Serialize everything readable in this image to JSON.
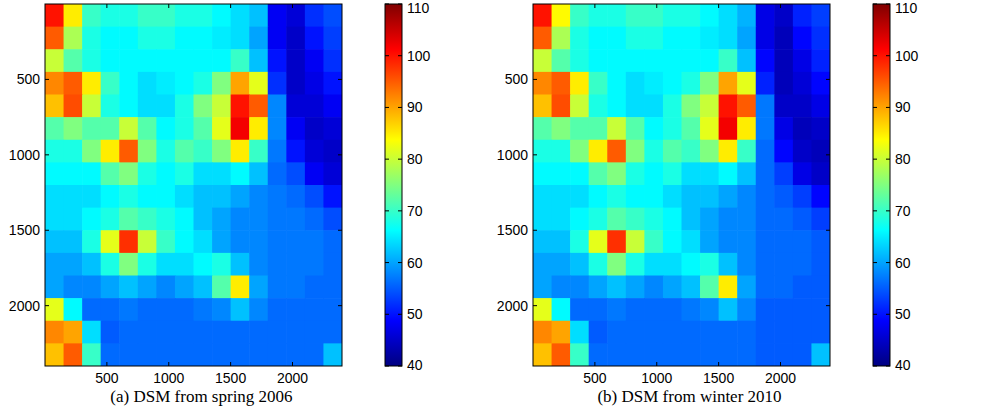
{
  "chart_data": [
    {
      "type": "heatmap",
      "title": "(a) DSM from spring 2006",
      "color": "jet",
      "x": [
        75,
        225,
        375,
        525,
        675,
        825,
        975,
        1125,
        1275,
        1425,
        1575,
        1725,
        1875,
        2025,
        2175,
        2325
      ],
      "y": [
        75,
        225,
        375,
        525,
        675,
        825,
        975,
        1125,
        1275,
        1425,
        1575,
        1725,
        1875,
        2025,
        2175,
        2325
      ],
      "xlim": [
        0,
        2400
      ],
      "ylim": [
        2400,
        0
      ],
      "xticks": [
        500,
        1000,
        1500,
        2000
      ],
      "yticks": [
        500,
        1000,
        1500,
        2000
      ],
      "colorbar_range": [
        40,
        110
      ],
      "colorbar_ticks": [
        40,
        50,
        60,
        70,
        80,
        90,
        100,
        110
      ],
      "cells": [
        [
          100,
          85,
          70,
          68,
          68,
          70,
          70,
          68,
          68,
          66,
          64,
          62,
          48,
          46,
          52,
          54
        ],
        [
          95,
          78,
          68,
          66,
          66,
          68,
          68,
          66,
          66,
          65,
          64,
          60,
          48,
          45,
          50,
          53
        ],
        [
          80,
          72,
          68,
          66,
          66,
          66,
          66,
          66,
          66,
          66,
          70,
          62,
          50,
          45,
          48,
          52
        ],
        [
          92,
          95,
          85,
          70,
          66,
          64,
          65,
          66,
          68,
          75,
          90,
          82,
          52,
          45,
          47,
          50
        ],
        [
          88,
          96,
          80,
          68,
          66,
          64,
          64,
          68,
          75,
          80,
          100,
          95,
          58,
          46,
          46,
          48
        ],
        [
          72,
          75,
          72,
          72,
          80,
          72,
          66,
          68,
          72,
          82,
          102,
          85,
          58,
          48,
          45,
          46
        ],
        [
          68,
          68,
          75,
          85,
          95,
          75,
          68,
          72,
          70,
          75,
          85,
          70,
          57,
          50,
          46,
          45
        ],
        [
          66,
          66,
          66,
          72,
          75,
          68,
          66,
          68,
          64,
          64,
          66,
          62,
          56,
          54,
          48,
          46
        ],
        [
          64,
          64,
          64,
          66,
          68,
          66,
          66,
          64,
          62,
          62,
          60,
          58,
          57,
          56,
          54,
          50
        ],
        [
          64,
          64,
          66,
          68,
          72,
          70,
          68,
          66,
          62,
          60,
          58,
          58,
          57,
          57,
          56,
          54
        ],
        [
          62,
          62,
          68,
          82,
          98,
          80,
          70,
          66,
          64,
          60,
          58,
          58,
          57,
          57,
          57,
          56
        ],
        [
          60,
          60,
          62,
          68,
          75,
          68,
          64,
          64,
          66,
          68,
          62,
          58,
          57,
          57,
          57,
          56
        ],
        [
          60,
          58,
          58,
          60,
          62,
          60,
          58,
          60,
          62,
          72,
          85,
          60,
          57,
          57,
          56,
          56
        ],
        [
          82,
          66,
          56,
          56,
          57,
          56,
          56,
          56,
          57,
          58,
          62,
          58,
          56,
          56,
          56,
          56
        ],
        [
          92,
          90,
          64,
          55,
          56,
          56,
          56,
          56,
          56,
          56,
          56,
          56,
          56,
          56,
          56,
          56
        ],
        [
          88,
          95,
          70,
          56,
          56,
          56,
          56,
          56,
          56,
          56,
          56,
          56,
          56,
          56,
          56,
          62
        ]
      ]
    },
    {
      "type": "heatmap",
      "title": "(b) DSM from winter 2010",
      "color": "jet",
      "x": [
        75,
        225,
        375,
        525,
        675,
        825,
        975,
        1125,
        1275,
        1425,
        1575,
        1725,
        1875,
        2025,
        2175,
        2325
      ],
      "y": [
        75,
        225,
        375,
        525,
        675,
        825,
        975,
        1125,
        1275,
        1425,
        1575,
        1725,
        1875,
        2025,
        2175,
        2325
      ],
      "xlim": [
        0,
        2400
      ],
      "ylim": [
        2400,
        0
      ],
      "xticks": [
        500,
        1000,
        1500,
        2000
      ],
      "yticks": [
        500,
        1000,
        1500,
        2000
      ],
      "colorbar_range": [
        40,
        110
      ],
      "colorbar_ticks": [
        40,
        50,
        60,
        70,
        80,
        90,
        100,
        110
      ],
      "cells": [
        [
          100,
          84,
          70,
          68,
          68,
          70,
          70,
          68,
          68,
          66,
          64,
          61,
          47,
          45,
          51,
          53
        ],
        [
          95,
          78,
          68,
          66,
          66,
          68,
          68,
          66,
          66,
          65,
          64,
          60,
          47,
          44,
          49,
          52
        ],
        [
          80,
          72,
          68,
          66,
          66,
          66,
          66,
          66,
          66,
          66,
          70,
          62,
          49,
          44,
          47,
          51
        ],
        [
          92,
          95,
          85,
          70,
          66,
          64,
          65,
          66,
          68,
          75,
          90,
          82,
          51,
          44,
          46,
          49
        ],
        [
          88,
          96,
          80,
          68,
          66,
          64,
          64,
          68,
          75,
          80,
          100,
          95,
          57,
          45,
          45,
          47
        ],
        [
          72,
          75,
          72,
          72,
          80,
          72,
          66,
          68,
          72,
          82,
          102,
          85,
          57,
          47,
          44,
          45
        ],
        [
          68,
          68,
          75,
          85,
          95,
          75,
          68,
          72,
          70,
          75,
          85,
          70,
          56,
          49,
          45,
          44
        ],
        [
          66,
          66,
          66,
          72,
          75,
          68,
          66,
          68,
          64,
          64,
          66,
          62,
          56,
          53,
          47,
          45
        ],
        [
          64,
          64,
          64,
          66,
          68,
          66,
          66,
          64,
          62,
          62,
          60,
          58,
          56,
          55,
          53,
          49
        ],
        [
          64,
          64,
          66,
          68,
          72,
          70,
          68,
          66,
          62,
          60,
          58,
          58,
          56,
          56,
          55,
          53
        ],
        [
          62,
          62,
          68,
          82,
          98,
          80,
          70,
          66,
          64,
          60,
          58,
          58,
          56,
          56,
          56,
          55
        ],
        [
          60,
          60,
          62,
          68,
          75,
          68,
          64,
          64,
          66,
          68,
          62,
          58,
          56,
          56,
          56,
          55
        ],
        [
          60,
          58,
          58,
          60,
          62,
          60,
          58,
          60,
          62,
          72,
          85,
          60,
          56,
          56,
          55,
          55
        ],
        [
          82,
          66,
          56,
          56,
          57,
          56,
          56,
          56,
          57,
          58,
          62,
          58,
          55,
          55,
          55,
          55
        ],
        [
          92,
          90,
          64,
          55,
          56,
          56,
          56,
          56,
          56,
          56,
          56,
          56,
          55,
          55,
          55,
          55
        ],
        [
          88,
          95,
          70,
          56,
          56,
          56,
          56,
          56,
          56,
          56,
          56,
          56,
          55,
          55,
          55,
          62
        ]
      ]
    }
  ]
}
